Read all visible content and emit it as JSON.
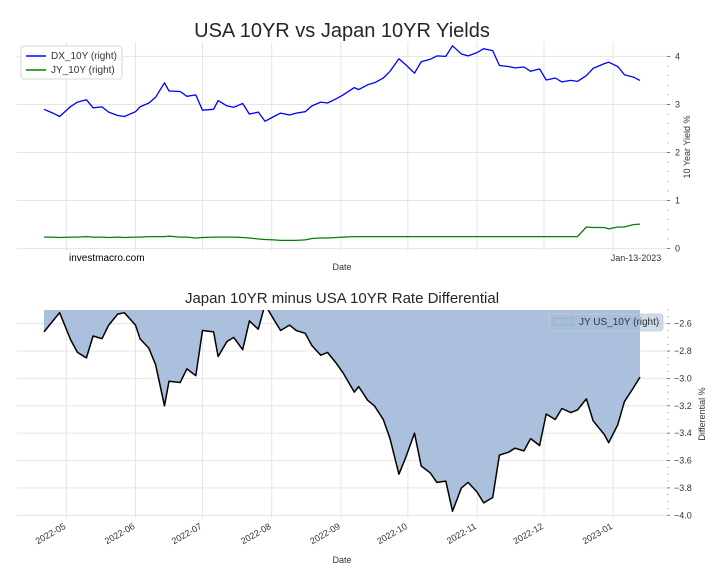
{
  "chart_data": [
    {
      "type": "line",
      "title": "USA 10YR vs Japan 10YR Yields",
      "xlabel": "Date",
      "ylabel": "10 Year Yield %",
      "ylim": [
        -0.05,
        4.3
      ],
      "yticks": [
        0,
        1,
        2,
        3,
        4
      ],
      "watermark": "investmacro.com",
      "date_note": "Jan-13-2023",
      "legend_position": "top-left",
      "x": [
        "2022-04-21",
        "2022-04-25",
        "2022-04-28",
        "2022-05-03",
        "2022-05-06",
        "2022-05-10",
        "2022-05-13",
        "2022-05-17",
        "2022-05-20",
        "2022-05-24",
        "2022-05-27",
        "2022-06-01",
        "2022-06-03",
        "2022-06-07",
        "2022-06-10",
        "2022-06-14",
        "2022-06-16",
        "2022-06-21",
        "2022-06-24",
        "2022-06-28",
        "2022-07-01",
        "2022-07-06",
        "2022-07-08",
        "2022-07-12",
        "2022-07-15",
        "2022-07-19",
        "2022-07-22",
        "2022-07-26",
        "2022-07-29",
        "2022-08-02",
        "2022-08-05",
        "2022-08-09",
        "2022-08-12",
        "2022-08-16",
        "2022-08-19",
        "2022-08-23",
        "2022-08-26",
        "2022-08-30",
        "2022-09-02",
        "2022-09-07",
        "2022-09-09",
        "2022-09-13",
        "2022-09-16",
        "2022-09-20",
        "2022-09-23",
        "2022-09-27",
        "2022-09-30",
        "2022-10-04",
        "2022-10-07",
        "2022-10-11",
        "2022-10-14",
        "2022-10-18",
        "2022-10-21",
        "2022-10-25",
        "2022-10-28",
        "2022-11-01",
        "2022-11-04",
        "2022-11-08",
        "2022-11-11",
        "2022-11-15",
        "2022-11-18",
        "2022-11-22",
        "2022-11-25",
        "2022-11-29",
        "2022-12-02",
        "2022-12-06",
        "2022-12-09",
        "2022-12-13",
        "2022-12-16",
        "2022-12-20",
        "2022-12-23",
        "2022-12-28",
        "2022-12-30",
        "2023-01-03",
        "2023-01-06",
        "2023-01-10",
        "2023-01-13"
      ],
      "series": [
        {
          "name": "DX_10Y (right)",
          "color": "#0000ff",
          "values": [
            2.9,
            2.82,
            2.75,
            2.96,
            3.05,
            3.1,
            2.93,
            2.95,
            2.84,
            2.77,
            2.75,
            2.85,
            2.95,
            3.03,
            3.15,
            3.45,
            3.28,
            3.27,
            3.17,
            3.2,
            2.88,
            2.9,
            3.08,
            2.97,
            2.94,
            3.02,
            2.8,
            2.84,
            2.65,
            2.75,
            2.82,
            2.78,
            2.82,
            2.85,
            2.97,
            3.05,
            3.03,
            3.12,
            3.2,
            3.35,
            3.31,
            3.41,
            3.45,
            3.55,
            3.69,
            3.95,
            3.83,
            3.65,
            3.89,
            3.94,
            4.01,
            4.0,
            4.22,
            4.05,
            4.01,
            4.08,
            4.16,
            4.12,
            3.81,
            3.79,
            3.76,
            3.78,
            3.69,
            3.74,
            3.51,
            3.55,
            3.47,
            3.5,
            3.48,
            3.6,
            3.75,
            3.85,
            3.88,
            3.79,
            3.62,
            3.57,
            3.5
          ]
        },
        {
          "name": "JY_10Y (right)",
          "color": "#008000",
          "values": [
            0.24,
            0.24,
            0.23,
            0.24,
            0.24,
            0.25,
            0.24,
            0.24,
            0.23,
            0.24,
            0.23,
            0.24,
            0.24,
            0.25,
            0.25,
            0.25,
            0.26,
            0.24,
            0.24,
            0.22,
            0.23,
            0.24,
            0.24,
            0.24,
            0.24,
            0.23,
            0.22,
            0.2,
            0.19,
            0.18,
            0.17,
            0.17,
            0.17,
            0.18,
            0.21,
            0.22,
            0.22,
            0.23,
            0.24,
            0.25,
            0.25,
            0.25,
            0.25,
            0.25,
            0.25,
            0.25,
            0.25,
            0.25,
            0.25,
            0.25,
            0.25,
            0.25,
            0.25,
            0.25,
            0.25,
            0.25,
            0.25,
            0.25,
            0.25,
            0.25,
            0.25,
            0.25,
            0.25,
            0.25,
            0.25,
            0.25,
            0.25,
            0.25,
            0.25,
            0.45,
            0.44,
            0.44,
            0.41,
            0.45,
            0.45,
            0.5,
            0.51
          ]
        }
      ]
    },
    {
      "type": "area",
      "title": "Japan 10YR minus USA 10YR Rate Differential",
      "xlabel": "Date",
      "ylabel": "Differential %",
      "ylim": [
        -4.02,
        -2.5
      ],
      "yticks": [
        -2.6,
        -2.8,
        -3.0,
        -3.2,
        -3.4,
        -3.6,
        -3.8,
        -4.0
      ],
      "xticks": [
        "2022-05",
        "2022-06",
        "2022-07",
        "2022-08",
        "2022-09",
        "2022-10",
        "2022-11",
        "2022-12",
        "2023-01"
      ],
      "legend_position": "top-right",
      "fill_color": "#a6bddb",
      "line_color": "#000000",
      "series": [
        {
          "name": "JY US_10Y (right)",
          "values": [
            -2.66,
            -2.58,
            -2.52,
            -2.72,
            -2.81,
            -2.85,
            -2.69,
            -2.71,
            -2.61,
            -2.53,
            -2.52,
            -2.61,
            -2.71,
            -2.78,
            -2.9,
            -3.2,
            -3.02,
            -3.03,
            -2.93,
            -2.98,
            -2.65,
            -2.66,
            -2.84,
            -2.73,
            -2.7,
            -2.79,
            -2.58,
            -2.64,
            -2.46,
            -2.57,
            -2.65,
            -2.61,
            -2.65,
            -2.67,
            -2.76,
            -2.83,
            -2.81,
            -2.89,
            -2.96,
            -3.1,
            -3.06,
            -3.16,
            -3.2,
            -3.3,
            -3.44,
            -3.7,
            -3.58,
            -3.4,
            -3.64,
            -3.69,
            -3.76,
            -3.75,
            -3.97,
            -3.8,
            -3.76,
            -3.83,
            -3.91,
            -3.87,
            -3.56,
            -3.54,
            -3.51,
            -3.53,
            -3.44,
            -3.49,
            -3.26,
            -3.3,
            -3.22,
            -3.25,
            -3.23,
            -3.15,
            -3.31,
            -3.41,
            -3.47,
            -3.34,
            -3.17,
            -3.07,
            -2.99
          ]
        }
      ]
    }
  ]
}
